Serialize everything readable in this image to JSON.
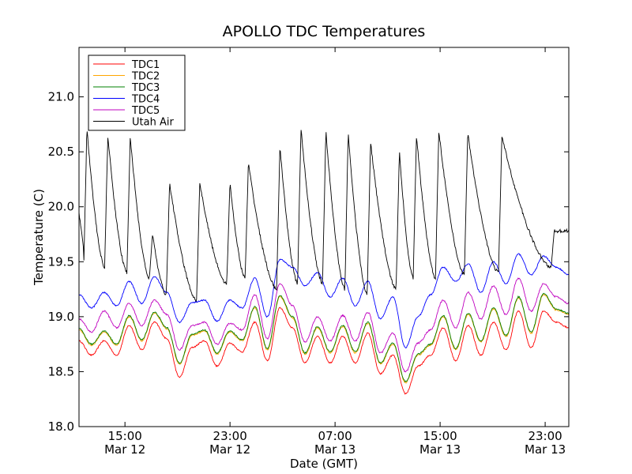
{
  "chart_data": {
    "type": "line",
    "title": "APOLLO TDC Temperatures",
    "xlabel": "Date (GMT)",
    "ylabel": "Temperature (C)",
    "ylim": [
      18.0,
      21.45
    ],
    "xlim_hours": [
      0,
      37.3
    ],
    "yticks": [
      "18.0",
      "18.5",
      "19.0",
      "19.5",
      "20.0",
      "20.5",
      "21.0"
    ],
    "ytick_values": [
      18.0,
      18.5,
      19.0,
      19.5,
      20.0,
      20.5,
      21.0
    ],
    "xticks": [
      {
        "hour": 3.5,
        "time": "15:00",
        "date": "Mar 12"
      },
      {
        "hour": 11.5,
        "time": "23:00",
        "date": "Mar 12"
      },
      {
        "hour": 19.5,
        "time": "07:00",
        "date": "Mar 13"
      },
      {
        "hour": 27.5,
        "time": "15:00",
        "date": "Mar 13"
      },
      {
        "hour": 35.5,
        "time": "23:00",
        "date": "Mar 13"
      }
    ],
    "legend_position": "top-left",
    "series": [
      {
        "name": "TDC1",
        "color": "#ff0000",
        "offset": 0.0,
        "base": [
          18.78,
          18.65,
          18.78,
          18.65,
          18.92,
          18.7,
          18.95,
          18.8,
          18.45,
          18.72,
          18.78,
          18.55,
          18.76,
          18.68,
          18.95,
          18.6,
          19.08,
          18.9,
          18.58,
          18.82,
          18.58,
          18.82,
          18.58,
          18.85,
          18.48,
          18.65,
          18.3,
          18.55,
          18.65,
          18.9,
          18.6,
          18.92,
          18.65,
          18.95,
          18.7,
          19.05,
          18.72,
          19.05,
          18.95,
          18.9
        ],
        "noise": 0.006
      },
      {
        "name": "TDC2",
        "color": "#ffa500",
        "offset": 0.0,
        "base": [
          18.88,
          18.74,
          18.86,
          18.74,
          19.0,
          18.78,
          19.03,
          18.89,
          18.57,
          18.83,
          18.87,
          18.66,
          18.86,
          18.78,
          19.08,
          18.7,
          19.18,
          18.99,
          18.66,
          18.9,
          18.67,
          18.91,
          18.67,
          18.94,
          18.57,
          18.75,
          18.4,
          18.65,
          18.74,
          19.0,
          18.7,
          19.02,
          18.77,
          19.07,
          18.82,
          19.17,
          18.85,
          19.2,
          19.06,
          19.02
        ],
        "noise": 0.006
      },
      {
        "name": "TDC3",
        "color": "#008000",
        "offset": 0.0,
        "base": [
          18.89,
          18.75,
          18.87,
          18.75,
          19.01,
          18.79,
          19.04,
          18.9,
          18.58,
          18.84,
          18.88,
          18.67,
          18.87,
          18.79,
          19.09,
          18.71,
          19.19,
          19.0,
          18.67,
          18.91,
          18.68,
          18.92,
          18.68,
          18.95,
          18.58,
          18.76,
          18.41,
          18.66,
          18.75,
          19.01,
          18.71,
          19.03,
          18.78,
          19.08,
          18.83,
          19.18,
          18.86,
          19.21,
          19.07,
          19.03
        ],
        "noise": 0.006
      },
      {
        "name": "TDC4",
        "color": "#0000ff",
        "offset": 0.0,
        "base": [
          19.2,
          19.08,
          19.22,
          19.1,
          19.32,
          19.12,
          19.36,
          19.22,
          18.95,
          19.13,
          19.15,
          18.96,
          19.15,
          19.08,
          19.35,
          19.0,
          19.52,
          19.45,
          19.28,
          19.4,
          19.18,
          19.35,
          19.1,
          19.32,
          18.98,
          19.18,
          18.72,
          19.0,
          19.2,
          19.45,
          19.32,
          19.48,
          19.22,
          19.5,
          19.3,
          19.57,
          19.38,
          19.55,
          19.45,
          19.38
        ],
        "noise": 0.006
      },
      {
        "name": "TDC5",
        "color": "#bf00bf",
        "offset": 0.0,
        "base": [
          18.98,
          18.86,
          19.05,
          18.9,
          19.12,
          18.92,
          19.15,
          19.02,
          18.7,
          18.92,
          18.95,
          18.75,
          18.94,
          18.88,
          19.2,
          18.8,
          19.3,
          19.1,
          18.77,
          19.0,
          18.78,
          19.01,
          18.78,
          19.04,
          18.67,
          18.85,
          18.5,
          18.76,
          18.88,
          19.15,
          18.9,
          19.22,
          18.98,
          19.28,
          19.02,
          19.35,
          19.05,
          19.3,
          19.18,
          19.12
        ],
        "noise": 0.007
      },
      {
        "name": "Utah Air",
        "color": "#000000",
        "type": "sawtooth",
        "peaks": [
          {
            "t": 0.6,
            "low": 19.4,
            "high": 20.72
          },
          {
            "t": 2.2,
            "low": 19.45,
            "high": 20.65
          },
          {
            "t": 3.9,
            "low": 19.4,
            "high": 20.65
          },
          {
            "t": 5.6,
            "low": 19.35,
            "high": 19.75
          },
          {
            "t": 6.9,
            "low": 19.2,
            "high": 20.22
          },
          {
            "t": 9.2,
            "low": 19.15,
            "high": 20.22
          },
          {
            "t": 11.5,
            "low": 19.3,
            "high": 20.22
          },
          {
            "t": 12.9,
            "low": 19.35,
            "high": 20.4
          },
          {
            "t": 15.3,
            "low": 19.25,
            "high": 20.55
          },
          {
            "t": 16.9,
            "low": 19.3,
            "high": 20.72
          },
          {
            "t": 18.8,
            "low": 19.3,
            "high": 20.7
          },
          {
            "t": 20.5,
            "low": 19.25,
            "high": 20.68
          },
          {
            "t": 22.2,
            "low": 19.2,
            "high": 20.6
          },
          {
            "t": 24.4,
            "low": 19.25,
            "high": 20.52
          },
          {
            "t": 25.7,
            "low": 19.35,
            "high": 20.66
          },
          {
            "t": 27.4,
            "low": 19.35,
            "high": 20.7
          },
          {
            "t": 29.6,
            "low": 19.38,
            "high": 20.68
          },
          {
            "t": 32.2,
            "low": 19.4,
            "high": 20.64
          },
          {
            "t": 36.2,
            "low": 19.45,
            "high": 19.78
          }
        ],
        "start": 19.95,
        "end": 19.78
      }
    ]
  }
}
